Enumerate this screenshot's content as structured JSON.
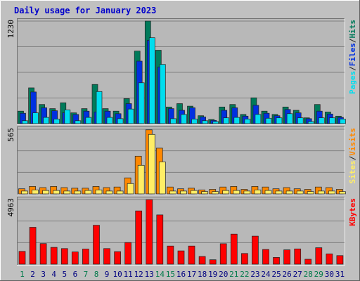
{
  "colors": {
    "background": "#c0c0c0",
    "plot_bg": "#b8b8b8",
    "title": "#0000cc",
    "hits": "#007a5a",
    "files": "#0030e0",
    "pages": "#00ddee",
    "visits": "#ff8800",
    "sites": "#ffee66",
    "kbytes": "#ff0000",
    "weekend_label": "#007a4a",
    "weekday_label": "#000080"
  },
  "chart_data": {
    "type": "bar",
    "title": "Daily usage for January 2023",
    "categories": [
      "1",
      "2",
      "3",
      "4",
      "5",
      "6",
      "7",
      "8",
      "9",
      "10",
      "11",
      "12",
      "13",
      "14",
      "15",
      "16",
      "17",
      "18",
      "19",
      "20",
      "21",
      "22",
      "23",
      "24",
      "25",
      "26",
      "27",
      "28",
      "29",
      "30",
      "31"
    ],
    "weekend_days": [
      "1",
      "7",
      "8",
      "14",
      "15",
      "21",
      "22",
      "28",
      "29"
    ],
    "panels": [
      {
        "name": "top",
        "ymax_label": "1230",
        "ymax": 1230,
        "side_labels": [
          "Pages",
          "/",
          "Files",
          "/",
          "Hits"
        ],
        "series": [
          {
            "name": "Hits",
            "values": [
              150,
              430,
              230,
              180,
              250,
              130,
              180,
              470,
              180,
              150,
              300,
              870,
              1230,
              880,
              200,
              240,
              210,
              95,
              50,
              200,
              230,
              110,
              310,
              150,
              110,
              200,
              160,
              70,
              230,
              140,
              90
            ]
          },
          {
            "name": "Files",
            "values": [
              125,
              380,
              190,
              155,
              130,
              110,
              150,
              140,
              150,
              120,
              240,
              750,
              1000,
              680,
              180,
              160,
              190,
              80,
              40,
              160,
              190,
              90,
              220,
              125,
              95,
              170,
              130,
              60,
              150,
              115,
              75
            ]
          },
          {
            "name": "Pages",
            "values": [
              35,
              130,
              75,
              55,
              165,
              35,
              75,
              385,
              75,
              60,
              175,
              490,
              1030,
              710,
              60,
              110,
              55,
              35,
              25,
              70,
              75,
              55,
              110,
              65,
              70,
              120,
              70,
              25,
              70,
              70,
              55
            ]
          }
        ]
      },
      {
        "name": "middle",
        "ymax_label": "565",
        "ymax": 565,
        "side_labels": [
          "Sites",
          "/",
          "Visits"
        ],
        "series": [
          {
            "name": "Visits",
            "values": [
              45,
              65,
              55,
              65,
              55,
              50,
              50,
              65,
              55,
              60,
              140,
              330,
              560,
              400,
              60,
              45,
              50,
              35,
              40,
              60,
              65,
              40,
              65,
              60,
              45,
              55,
              45,
              40,
              60,
              55,
              40
            ]
          },
          {
            "name": "Sites",
            "values": [
              25,
              35,
              30,
              30,
              25,
              25,
              30,
              35,
              25,
              25,
              90,
              250,
              520,
              280,
              25,
              25,
              30,
              20,
              20,
              30,
              30,
              25,
              35,
              30,
              25,
              25,
              25,
              20,
              25,
              25,
              20
            ]
          }
        ]
      },
      {
        "name": "bottom",
        "ymax_label": "4963",
        "ymax": 4963,
        "side_labels": [
          "KBytes"
        ],
        "series": [
          {
            "name": "KBytes",
            "values": [
              980,
              2830,
              1580,
              1290,
              1200,
              940,
              1160,
              2990,
              1200,
              960,
              1660,
              4090,
              4950,
              3780,
              1390,
              1020,
              1390,
              590,
              340,
              1570,
              2310,
              820,
              2150,
              1130,
              520,
              1100,
              1170,
              380,
              1260,
              790,
              660
            ]
          }
        ]
      }
    ]
  }
}
